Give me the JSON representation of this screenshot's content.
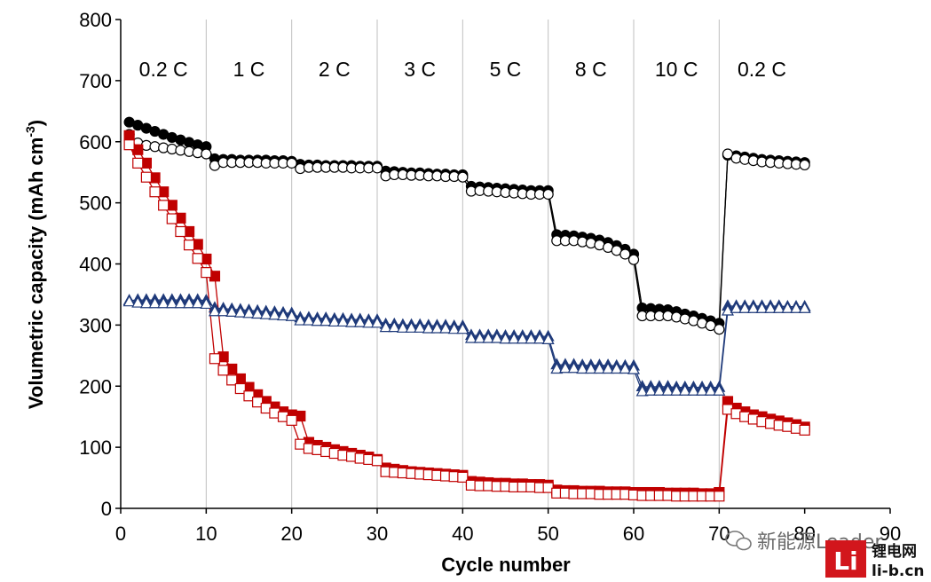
{
  "chart_data": {
    "type": "scatter",
    "title": "",
    "xlabel": "Cycle number",
    "ylabel_main": "Volumetric capacity (mAh cm",
    "ylabel_superscript": "-3",
    "ylabel_close": ")",
    "xlim": [
      0,
      90
    ],
    "ylim": [
      0,
      800
    ],
    "x_ticks": [
      0,
      10,
      20,
      30,
      40,
      50,
      60,
      70,
      80,
      90
    ],
    "y_ticks": [
      0,
      100,
      200,
      300,
      400,
      500,
      600,
      700,
      800
    ],
    "grid": false,
    "legend": "none",
    "rate_segments": [
      {
        "label": "0.2 C",
        "start": 0,
        "end": 10
      },
      {
        "label": "1 C",
        "start": 10,
        "end": 20
      },
      {
        "label": "2 C",
        "start": 20,
        "end": 30
      },
      {
        "label": "3 C",
        "start": 30,
        "end": 40
      },
      {
        "label": "5 C",
        "start": 40,
        "end": 50
      },
      {
        "label": "8 C",
        "start": 50,
        "end": 60
      },
      {
        "label": "10 C",
        "start": 60,
        "end": 70
      },
      {
        "label": "0.2 C",
        "start": 70,
        "end": 80
      }
    ],
    "x": [
      1,
      2,
      3,
      4,
      5,
      6,
      7,
      8,
      9,
      10,
      11,
      12,
      13,
      14,
      15,
      16,
      17,
      18,
      19,
      20,
      21,
      22,
      23,
      24,
      25,
      26,
      27,
      28,
      29,
      30,
      31,
      32,
      33,
      34,
      35,
      36,
      37,
      38,
      39,
      40,
      41,
      42,
      43,
      44,
      45,
      46,
      47,
      48,
      49,
      50,
      51,
      52,
      53,
      54,
      55,
      56,
      57,
      58,
      59,
      60,
      61,
      62,
      63,
      64,
      65,
      66,
      67,
      68,
      69,
      70,
      71,
      72,
      73,
      74,
      75,
      76,
      77,
      78,
      79,
      80
    ],
    "series": [
      {
        "marker": "circle",
        "filled": true,
        "color": "#000000",
        "values": [
          632,
          627,
          622,
          617,
          612,
          607,
          603,
          599,
          595,
          592,
          572,
          571,
          571,
          570,
          570,
          570,
          570,
          569,
          569,
          568,
          563,
          562,
          562,
          561,
          561,
          561,
          561,
          560,
          560,
          560,
          552,
          551,
          550,
          549,
          549,
          548,
          547,
          547,
          546,
          546,
          527,
          526,
          525,
          524,
          523,
          522,
          521,
          520,
          520,
          520,
          448,
          447,
          446,
          444,
          442,
          439,
          435,
          430,
          424,
          416,
          328,
          327,
          326,
          325,
          322,
          318,
          315,
          311,
          307,
          303,
          578,
          577,
          575,
          573,
          571,
          570,
          569,
          568,
          567,
          566
        ]
      },
      {
        "marker": "circle",
        "filled": false,
        "color": "#000000",
        "values": [
          612,
          598,
          594,
          592,
          590,
          588,
          586,
          584,
          582,
          580,
          561,
          566,
          566,
          566,
          566,
          566,
          565,
          565,
          565,
          565,
          556,
          558,
          558,
          558,
          558,
          558,
          557,
          557,
          557,
          557,
          544,
          546,
          546,
          545,
          545,
          544,
          544,
          543,
          543,
          542,
          519,
          520,
          519,
          518,
          517,
          516,
          515,
          514,
          514,
          514,
          438,
          438,
          438,
          436,
          434,
          431,
          427,
          422,
          416,
          407,
          315,
          315,
          315,
          315,
          313,
          310,
          307,
          303,
          299,
          293,
          580,
          573,
          571,
          569,
          567,
          566,
          565,
          564,
          563,
          562
        ]
      },
      {
        "marker": "square",
        "filled": true,
        "color": "#c00000",
        "values": [
          610,
          587,
          565,
          541,
          518,
          496,
          475,
          453,
          432,
          408,
          380,
          248,
          228,
          212,
          198,
          186,
          175,
          166,
          158,
          153,
          151,
          108,
          103,
          100,
          96,
          93,
          90,
          87,
          84,
          80,
          66,
          64,
          62,
          60,
          59,
          58,
          57,
          56,
          55,
          54,
          44,
          43,
          42,
          41,
          41,
          40,
          40,
          39,
          39,
          38,
          30,
          29,
          29,
          28,
          28,
          28,
          27,
          27,
          27,
          26,
          26,
          26,
          26,
          25,
          25,
          25,
          25,
          24,
          24,
          26,
          175,
          164,
          158,
          153,
          150,
          146,
          143,
          140,
          137,
          133
        ]
      },
      {
        "marker": "square",
        "filled": false,
        "color": "#c00000",
        "values": [
          595,
          565,
          542,
          518,
          496,
          474,
          453,
          431,
          409,
          386,
          245,
          226,
          210,
          196,
          184,
          174,
          164,
          156,
          150,
          144,
          105,
          98,
          96,
          93,
          90,
          87,
          85,
          82,
          80,
          78,
          60,
          59,
          58,
          57,
          56,
          55,
          54,
          53,
          52,
          51,
          38,
          37,
          37,
          36,
          36,
          35,
          35,
          35,
          34,
          34,
          25,
          25,
          24,
          24,
          24,
          23,
          23,
          23,
          23,
          22,
          21,
          21,
          21,
          21,
          20,
          20,
          20,
          20,
          20,
          20,
          162,
          155,
          150,
          146,
          142,
          139,
          136,
          134,
          131,
          128
        ]
      },
      {
        "marker": "triangle",
        "filled": true,
        "color": "#1f3a7a",
        "values": [
          340,
          341,
          341,
          341,
          341,
          341,
          341,
          341,
          341,
          340,
          328,
          327,
          326,
          325,
          324,
          323,
          322,
          321,
          320,
          319,
          312,
          312,
          311,
          311,
          310,
          310,
          309,
          309,
          308,
          308,
          301,
          301,
          300,
          300,
          300,
          299,
          299,
          299,
          298,
          298,
          283,
          283,
          283,
          283,
          282,
          282,
          282,
          282,
          282,
          281,
          235,
          235,
          235,
          234,
          234,
          234,
          234,
          233,
          233,
          233,
          199,
          199,
          199,
          199,
          198,
          198,
          198,
          198,
          198,
          198,
          331,
          331,
          331,
          331,
          331,
          331,
          331,
          330,
          330,
          330
        ]
      },
      {
        "marker": "triangle",
        "filled": false,
        "color": "#1f3a7a",
        "values": [
          338,
          336,
          335,
          335,
          335,
          335,
          335,
          335,
          335,
          334,
          322,
          322,
          321,
          320,
          319,
          318,
          317,
          316,
          315,
          314,
          307,
          307,
          306,
          306,
          305,
          305,
          304,
          304,
          303,
          303,
          296,
          296,
          295,
          295,
          295,
          294,
          294,
          294,
          293,
          293,
          278,
          278,
          278,
          278,
          277,
          277,
          277,
          277,
          277,
          276,
          228,
          229,
          229,
          228,
          228,
          228,
          228,
          228,
          228,
          227,
          191,
          192,
          192,
          192,
          192,
          192,
          192,
          192,
          192,
          192,
          323,
          327,
          327,
          327,
          327,
          327,
          327,
          327,
          327,
          327
        ]
      }
    ]
  },
  "watermark": {
    "icon": "wechat-icon",
    "text": "新能源Leader",
    "logo_mark": "Li",
    "logo_cn": "锂电网",
    "logo_url": "li-b.cn"
  }
}
